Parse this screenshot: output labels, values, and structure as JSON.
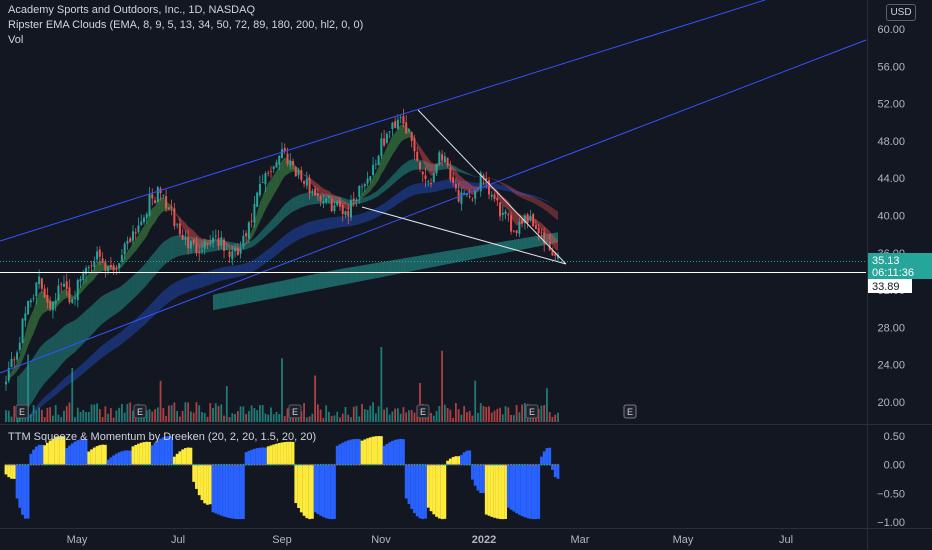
{
  "header": {
    "title": "Academy Sports and Outdoors, Inc., 1D, NASDAQ",
    "ema_indicator": "Ripster EMA Clouds (EMA, 8, 9, 5, 13, 34, 50, 72, 89, 180, 200, hl2, 0, 0)",
    "volume_label": "Vol",
    "currency": "USD"
  },
  "ttm_indicator": "TTM Squeeze & Momentum by Dreeken (20, 2, 20, 1.5, 20, 20)",
  "colors": {
    "background": "#131722",
    "up": "#26a69a",
    "down": "#ef5350",
    "trendline": "#3353ff",
    "squeeze_yellow": "#ffeb3b",
    "squeeze_blue": "#2962ff",
    "price_badge": "#26a69a",
    "level_badge": "#ffffff"
  },
  "price_badge": {
    "price": "35.13",
    "countdown": "06:11:36"
  },
  "level_badge": "33.89",
  "earnings_marker": "E",
  "chart_data": [
    {
      "type": "candlestick",
      "y_ticks": [
        "60.00",
        "56.00",
        "52.00",
        "48.00",
        "44.00",
        "40.00",
        "36.00",
        "32.00",
        "28.00",
        "24.00",
        "20.00"
      ],
      "ylim": [
        18.5,
        62.5
      ],
      "x_ticks": [
        "May",
        "Jul",
        "Sep",
        "Nov",
        "2022",
        "Mar",
        "May",
        "Jul"
      ],
      "close_path": [
        [
          0,
          23.0
        ],
        [
          4,
          25.5
        ],
        [
          8,
          30.8
        ],
        [
          12,
          32.8
        ],
        [
          16,
          30.5
        ],
        [
          20,
          32.5
        ],
        [
          24,
          31.0
        ],
        [
          28,
          34.0
        ],
        [
          32,
          35.8
        ],
        [
          36,
          34.0
        ],
        [
          40,
          34.5
        ],
        [
          44,
          37.5
        ],
        [
          48,
          39.0
        ],
        [
          52,
          41.5
        ],
        [
          56,
          42.5
        ],
        [
          60,
          40.0
        ],
        [
          64,
          37.5
        ],
        [
          68,
          36.5
        ],
        [
          72,
          37.0
        ],
        [
          76,
          37.8
        ],
        [
          80,
          36.0
        ],
        [
          84,
          35.8
        ],
        [
          88,
          38.5
        ],
        [
          92,
          43.0
        ],
        [
          96,
          45.0
        ],
        [
          100,
          47.0
        ],
        [
          104,
          45.5
        ],
        [
          108,
          43.5
        ],
        [
          112,
          42.5
        ],
        [
          116,
          41.5
        ],
        [
          120,
          41.0
        ],
        [
          124,
          40.5
        ],
        [
          128,
          43.0
        ],
        [
          132,
          44.5
        ],
        [
          136,
          47.5
        ],
        [
          140,
          49.5
        ],
        [
          143,
          51.0
        ],
        [
          146,
          48.5
        ],
        [
          150,
          45.0
        ],
        [
          154,
          43.5
        ],
        [
          157,
          47.0
        ],
        [
          160,
          45.5
        ],
        [
          164,
          42.0
        ],
        [
          168,
          41.5
        ],
        [
          172,
          44.0
        ],
        [
          176,
          42.0
        ],
        [
          180,
          40.0
        ],
        [
          184,
          38.5
        ],
        [
          188,
          40.0
        ],
        [
          192,
          39.0
        ],
        [
          196,
          36.5
        ],
        [
          200,
          35.1
        ]
      ],
      "volume_spikes": [
        [
          8,
          0.9
        ],
        [
          24,
          0.72
        ],
        [
          56,
          0.55
        ],
        [
          80,
          0.48
        ],
        [
          100,
          0.85
        ],
        [
          112,
          0.62
        ],
        [
          136,
          1.0
        ],
        [
          150,
          0.52
        ],
        [
          158,
          0.95
        ],
        [
          170,
          0.55
        ],
        [
          196,
          0.45
        ]
      ]
    },
    {
      "type": "bar",
      "name": "TTM Squeeze & Momentum",
      "y_ticks": [
        "0.50",
        "0.00",
        "−0.50",
        "−1.00"
      ],
      "ylim": [
        -1.0,
        0.5
      ],
      "segments": [
        [
          0,
          3,
          -0.15,
          -0.25
        ],
        [
          4,
          8,
          -0.5,
          -0.95
        ],
        [
          9,
          13,
          0.15,
          0.35
        ],
        [
          14,
          21,
          0.3,
          0.5
        ],
        [
          22,
          29,
          0.25,
          0.45
        ],
        [
          30,
          36,
          0.2,
          0.35
        ],
        [
          37,
          45,
          0.05,
          0.25
        ],
        [
          46,
          52,
          0.3,
          0.4
        ],
        [
          53,
          60,
          0.3,
          0.5
        ],
        [
          61,
          67,
          0.1,
          0.3
        ],
        [
          68,
          74,
          -0.2,
          -0.7
        ],
        [
          75,
          86,
          -0.8,
          -0.95
        ],
        [
          87,
          94,
          0.2,
          0.3
        ],
        [
          95,
          104,
          0.3,
          0.4
        ],
        [
          105,
          111,
          -0.6,
          -0.95
        ],
        [
          112,
          119,
          -0.8,
          -0.95
        ],
        [
          120,
          128,
          0.3,
          0.45
        ],
        [
          129,
          136,
          0.4,
          0.5
        ],
        [
          137,
          144,
          0.3,
          0.45
        ],
        [
          145,
          152,
          -0.5,
          -0.95
        ],
        [
          153,
          159,
          -0.7,
          -0.95
        ],
        [
          160,
          164,
          0.05,
          0.15
        ],
        [
          165,
          168,
          0.15,
          0.25
        ],
        [
          169,
          173,
          -0.2,
          -0.5
        ],
        [
          174,
          181,
          -0.85,
          -0.95
        ],
        [
          182,
          193,
          -0.7,
          -0.95
        ],
        [
          194,
          197,
          0.1,
          0.3
        ],
        [
          198,
          200,
          -0.05,
          -0.25
        ]
      ]
    }
  ]
}
